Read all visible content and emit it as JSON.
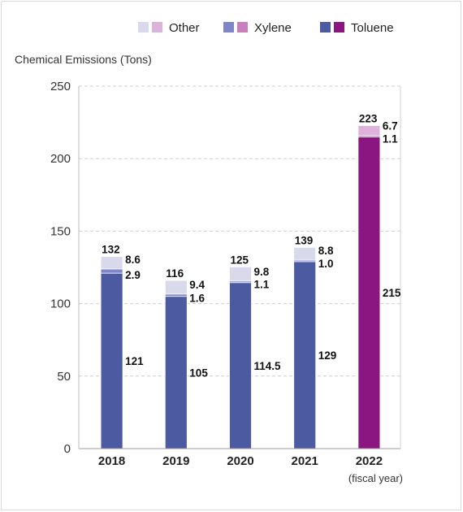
{
  "chart_data": {
    "type": "bar",
    "stacked": true,
    "ylabel": "Chemical Emissions (Tons)",
    "xlabel": "(fiscal year)",
    "ylim": [
      0,
      250
    ],
    "yticks": [
      0,
      50,
      100,
      150,
      200,
      250
    ],
    "grid": true,
    "legend_position": "top-right",
    "legend": {
      "items": [
        {
          "name": "Other",
          "colors": [
            "#d9d9ec",
            "#ddb3dc"
          ]
        },
        {
          "name": "Xylene",
          "colors": [
            "#7f86c7",
            "#c77fbd"
          ]
        },
        {
          "name": "Toluene",
          "colors": [
            "#4c5aa1",
            "#8b1681"
          ]
        }
      ]
    },
    "categories": [
      "2018",
      "2019",
      "2020",
      "2021",
      "2022"
    ],
    "series": [
      {
        "name": "Toluene",
        "values": [
          121,
          105,
          114.5,
          129,
          215
        ],
        "labels": [
          "121",
          "105",
          "114.5",
          "129",
          "215"
        ]
      },
      {
        "name": "Xylene",
        "values": [
          2.9,
          1.6,
          1.1,
          1.0,
          1.1
        ],
        "labels": [
          "2.9",
          "1.6",
          "1.1",
          "1.0",
          "1.1"
        ]
      },
      {
        "name": "Other",
        "values": [
          8.6,
          9.4,
          9.8,
          8.8,
          6.7
        ],
        "labels": [
          "8.6",
          "9.4",
          "9.8",
          "8.8",
          "6.7"
        ]
      }
    ],
    "totals": [
      "132",
      "116",
      "125",
      "139",
      "223"
    ],
    "colors": {
      "regular": {
        "Toluene": "#4c5aa1",
        "Xylene": "#7f86c7",
        "Other": "#d9d9ec"
      },
      "highlight": {
        "Toluene": "#8b1681",
        "Xylene": "#c77fbd",
        "Other": "#ddb3dc"
      },
      "highlight_category": "2022"
    }
  }
}
